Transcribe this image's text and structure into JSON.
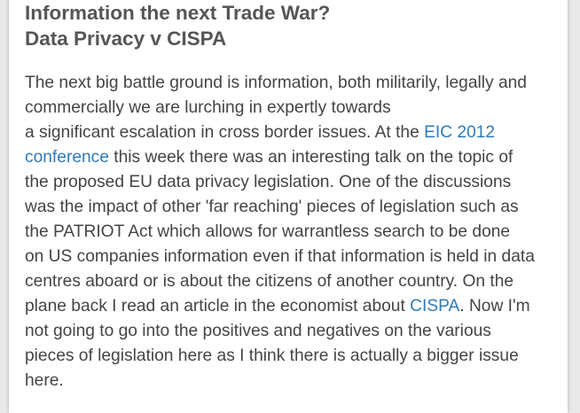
{
  "post": {
    "title_line1": "Information the next Trade War?",
    "title_line2": "Data Privacy v CISPA",
    "lines": {
      "l1": "The next big battle ground is information, both militarily, legally and",
      "l2": "commercially we are lurching in expertly towards",
      "l3a": "a significant escalation in cross border issues. At the ",
      "link_eic_part1": "EIC 2012",
      "link_eic_part2": "conference",
      "l4b": " this week there was an interesting talk on the topic of",
      "l5": "the proposed EU data privacy legislation.  One of the discussions",
      "l6": "was the impact of other 'far reaching' pieces of legislation such as",
      "l7": "the PATRIOT Act which allows for warrantless search to be done",
      "l8": "on US companies information even if that information is held in data",
      "l9": "centres aboard or is about the citizens of another country.  On the",
      "l10a": "plane back I read an article in the economist about ",
      "link_cispa": "CISPA",
      "l10b": ".  Now I'm",
      "l11": "not going to go into the positives and negatives on the various",
      "l12": "pieces of legislation here as I think there is actually a bigger issue",
      "l13": "here."
    }
  },
  "colors": {
    "link": "#2f7ab8",
    "text": "#444444",
    "title": "#555555"
  }
}
